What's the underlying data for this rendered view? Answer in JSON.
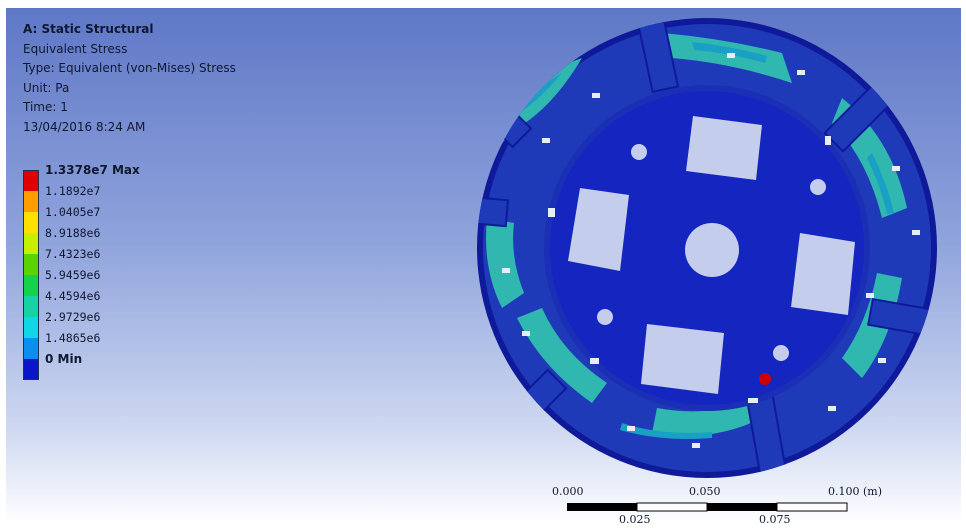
{
  "info": {
    "analysis_title": "A: Static Structural",
    "result_name": "Equivalent Stress",
    "result_type": "Type: Equivalent (von-Mises) Stress",
    "unit": "Unit: Pa",
    "time": "Time: 1",
    "date": "13/04/2016 8:24 AM"
  },
  "legend": {
    "levels": [
      {
        "label": "1.3378e7 Max",
        "color": "#e00000",
        "bold": true
      },
      {
        "label": "1.1892e7",
        "color": "#ff9d00",
        "bold": false
      },
      {
        "label": "1.0405e7",
        "color": "#ffe000",
        "bold": false
      },
      {
        "label": "8.9188e6",
        "color": "#c6f000",
        "bold": false
      },
      {
        "label": "7.4323e6",
        "color": "#5ad400",
        "bold": false
      },
      {
        "label": "5.9459e6",
        "color": "#14d24a",
        "bold": false
      },
      {
        "label": "4.4594e6",
        "color": "#17d2a4",
        "bold": false
      },
      {
        "label": "2.9729e6",
        "color": "#0fd8e6",
        "bold": false
      },
      {
        "label": "1.4865e6",
        "color": "#0a8ff0",
        "bold": false
      },
      {
        "label": "0 Min",
        "color": "#0a14c8",
        "bold": true
      }
    ]
  },
  "model": {
    "part_color": "#1525c0",
    "ring_color": "#1e3ab8",
    "low_stress_color": "#2fb7b0",
    "mid_stress_color": "#1aa0c4",
    "hotspot_color": "#d00000"
  },
  "scale_bar": {
    "top_labels": [
      "0.000",
      "0.050",
      "0.100 (m)"
    ],
    "bottom_labels": [
      "0.025",
      "0.075"
    ]
  }
}
